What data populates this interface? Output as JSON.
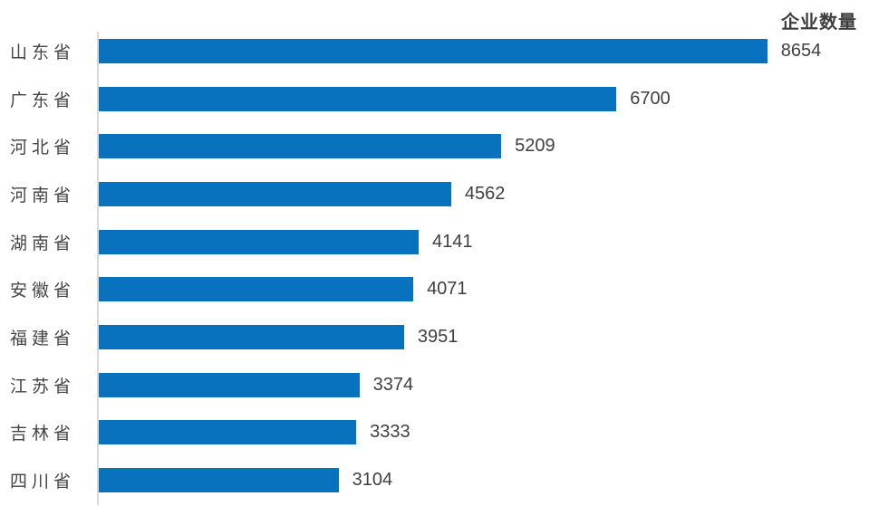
{
  "chart_data": {
    "type": "bar",
    "orientation": "horizontal",
    "title": "企业数量",
    "categories": [
      "山东省",
      "广东省",
      "河北省",
      "河南省",
      "湖南省",
      "安徽省",
      "福建省",
      "江苏省",
      "吉林省",
      "四川省"
    ],
    "values": [
      8654,
      6700,
      5209,
      4562,
      4141,
      4071,
      3951,
      3374,
      3333,
      3104
    ],
    "value_labels": [
      "8654",
      "6700",
      "5209",
      "4562",
      "4141",
      "4071",
      "3951",
      "3374",
      "3333",
      "3104"
    ],
    "xlim": [
      0,
      9970
    ],
    "grid": false,
    "legend": false,
    "value_labels_shown": true,
    "bar_color": "#0872BE",
    "axis_line_color": "#D9D9D9",
    "category_label_color": "#444444",
    "value_label_color": "#3F3F3F",
    "title_color": "#3D3D3D",
    "background_color": "#FFFFFF"
  }
}
